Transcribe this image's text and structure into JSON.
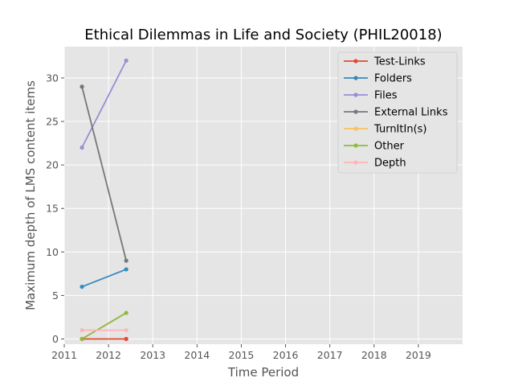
{
  "chart_data": {
    "type": "line",
    "title": "Ethical Dilemmas in Life and Society (PHIL20018)",
    "xlabel": "Time Period",
    "ylabel": "Maximum depth of LMS content items",
    "xlim": [
      2011,
      2020
    ],
    "ylim": [
      -0.6,
      33.6
    ],
    "xticks": [
      2011,
      2012,
      2013,
      2014,
      2015,
      2016,
      2017,
      2018,
      2019
    ],
    "xtick_labels": [
      "2011",
      "2012",
      "2013",
      "2014",
      "2015",
      "2016",
      "2017",
      "2018",
      "2019"
    ],
    "yticks": [
      0,
      5,
      10,
      15,
      20,
      25,
      30
    ],
    "ytick_labels": [
      "0",
      "5",
      "10",
      "15",
      "20",
      "25",
      "30"
    ],
    "grid": true,
    "legend_position": "top-right",
    "x": [
      2011.4,
      2012.4
    ],
    "series": [
      {
        "name": "Test-Links",
        "values": [
          0,
          0
        ],
        "color": "#E24A33"
      },
      {
        "name": "Folders",
        "values": [
          6,
          8
        ],
        "color": "#348ABD"
      },
      {
        "name": "Files",
        "values": [
          22,
          32
        ],
        "color": "#988ED5"
      },
      {
        "name": "External Links",
        "values": [
          29,
          9
        ],
        "color": "#777777"
      },
      {
        "name": "TurnItIn(s)",
        "values": [
          0,
          3
        ],
        "color": "#FBC15E"
      },
      {
        "name": "Other",
        "values": [
          0,
          3
        ],
        "color": "#8EBA42"
      },
      {
        "name": "Depth",
        "values": [
          1,
          1
        ],
        "color": "#FFB5B8"
      }
    ],
    "plot_background": "#E5E5E5",
    "grid_color": "#FFFFFF"
  }
}
